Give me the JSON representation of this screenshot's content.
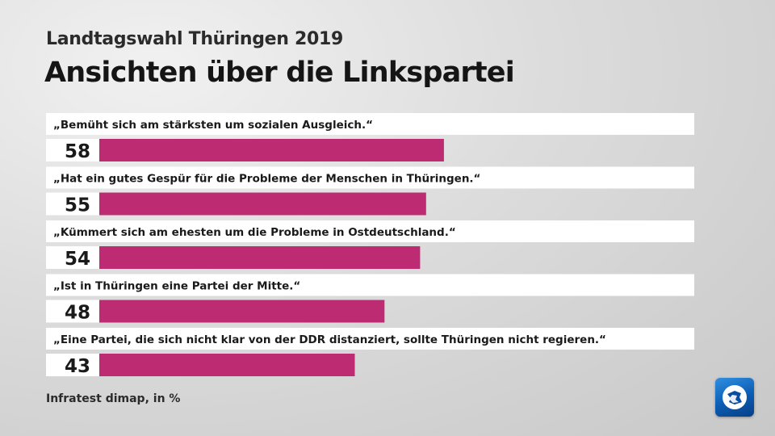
{
  "header": {
    "subtitle": "Landtagswahl Thüringen 2019",
    "title": "Ansichten über die Linkspartei"
  },
  "footer": {
    "source": "Infratest dimap, in %",
    "logo_icon": "tagesschau-logo-icon"
  },
  "colors": {
    "bar": "#bd2c73",
    "label_box": "#ffffff",
    "text": "#1a1a1a"
  },
  "chart_data": {
    "type": "bar",
    "orientation": "horizontal",
    "categories": [
      "„Bemüht sich am stärksten um sozialen Ausgleich.“",
      "„Hat ein gutes Gespür für die Probleme der Menschen in Thüringen.“",
      "„Kümmert sich am ehesten um die Probleme in Ostdeutschland.“",
      "„Ist in Thüringen eine Partei der Mitte.“",
      "„Eine Partei, die sich nicht klar von der DDR distanziert, sollte Thüringen nicht regieren.“"
    ],
    "values": [
      58,
      55,
      54,
      48,
      43
    ],
    "unit": "%",
    "xlim": [
      0,
      100
    ],
    "grid": false,
    "legend": false
  }
}
